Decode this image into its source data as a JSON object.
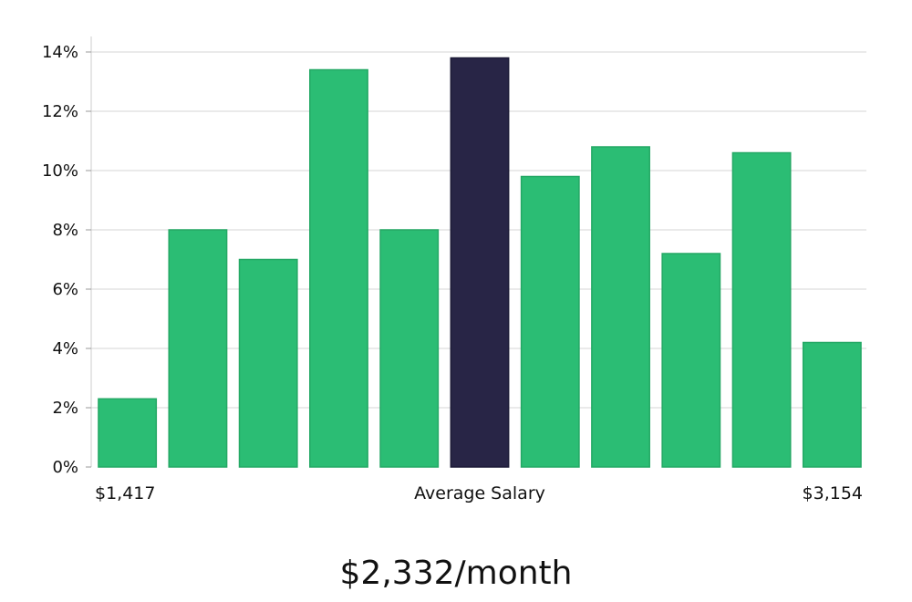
{
  "chart_data": {
    "type": "bar",
    "values": [
      2.3,
      8.0,
      7.0,
      13.4,
      8.0,
      13.8,
      9.8,
      10.8,
      7.2,
      10.6,
      4.2
    ],
    "highlight_index": 5,
    "ylim": [
      0,
      14
    ],
    "yticks": [
      "0%",
      "2%",
      "4%",
      "6%",
      "8%",
      "10%",
      "12%",
      "14%"
    ],
    "x_min_label": "$1,417",
    "x_center_label": "Average Salary",
    "x_max_label": "$3,154",
    "grid": true,
    "colors": {
      "bar": "#2bbd74",
      "highlight": "#282546",
      "grid": "#e3e3e3",
      "axis": "#cccccc"
    }
  },
  "summary": {
    "salary": "$2,332/month"
  }
}
